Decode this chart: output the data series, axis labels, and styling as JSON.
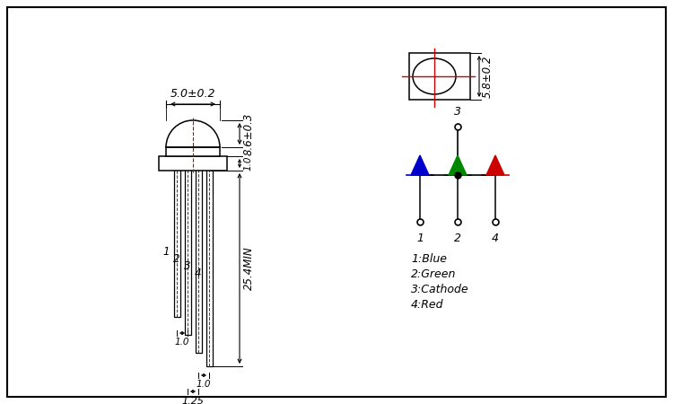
{
  "bg_color": "#ffffff",
  "border_color": "#000000",
  "red_color": "#cc0000",
  "blue_color": "#0000cc",
  "green_color": "#008800",
  "annotations": {
    "width_label": "5.0±0.2",
    "dome_height_label": "8.6±0.3",
    "collar_label": "1.0",
    "lead_length_label": "25.4MIN",
    "pitch_label": "1.25",
    "pin_spacing1": "1.0",
    "pin_spacing2": "1.0",
    "top_view_label": "5.8±0.2",
    "pin_labels": [
      "1",
      "2",
      "3",
      "4"
    ],
    "legend": [
      "1:Blue",
      "2:Green",
      "3:Cathode",
      "4:Red"
    ]
  }
}
